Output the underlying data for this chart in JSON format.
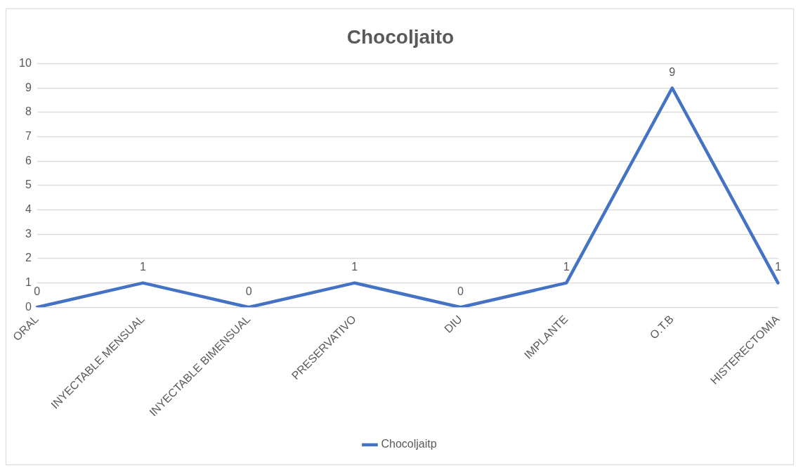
{
  "chart_data": {
    "type": "line",
    "title": "Chocoljaito",
    "categories": [
      "ORAL",
      "INYECTABLE MENSUAL",
      "INYECTABLE BIMENSUAL",
      "PRESERVATIVO",
      "DIU",
      "IMPLANTE",
      "O.T.B",
      "HISTERECTOMIA"
    ],
    "series": [
      {
        "name": "Chocoljaitp",
        "color": "#4472c4",
        "values": [
          0,
          1,
          0,
          1,
          0,
          1,
          9,
          1
        ]
      }
    ],
    "ylim": [
      0,
      10
    ],
    "yticks": [
      0,
      1,
      2,
      3,
      4,
      5,
      6,
      7,
      8,
      9,
      10
    ],
    "grid": "y",
    "legend": "bottom",
    "data_labels": true,
    "marker": "none",
    "line_style": "solid"
  }
}
